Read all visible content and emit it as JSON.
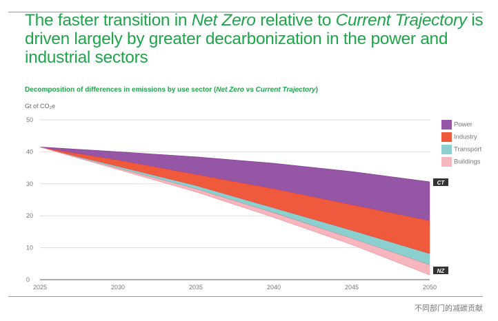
{
  "title": {
    "part1": "The faster transition in ",
    "em1": "Net Zero",
    "part2": " relative to ",
    "em2": "Current Trajectory",
    "part3": " is driven largely by greater decarbonization in the power and industrial sectors"
  },
  "subtitle": {
    "part1": "Decomposition of differences in emissions by use sector (",
    "em1": "Net Zero",
    "part2": " vs ",
    "em2": "Current Trajectory",
    "part3": ")"
  },
  "caption": "不同部门的减碳贡献",
  "chart_data": {
    "type": "area",
    "stacked": true,
    "ylabel": "Gt of CO₂e",
    "ylim": [
      0,
      50
    ],
    "yticks": [
      0,
      10,
      20,
      30,
      40,
      50
    ],
    "x": [
      2025,
      2030,
      2035,
      2040,
      2045,
      2050
    ],
    "grid": true,
    "legend_placement": "right",
    "baseline": {
      "name": "NZ",
      "values": [
        41.5,
        34.5,
        27.5,
        19.5,
        11,
        1.5
      ]
    },
    "series": [
      {
        "name": "Buildings",
        "color": "#f7b6bd",
        "values": [
          0,
          0.5,
          1,
          1.5,
          2,
          3.2
        ]
      },
      {
        "name": "Transport",
        "color": "#8ccfcf",
        "values": [
          0,
          0.5,
          1,
          1.5,
          2.5,
          3.5
        ]
      },
      {
        "name": "Industry",
        "color": "#ef5a3c",
        "values": [
          0,
          2,
          3.5,
          6,
          8,
          10.3
        ]
      },
      {
        "name": "Power",
        "color": "#9656a6",
        "values": [
          0,
          2.5,
          5.4,
          7.9,
          10.3,
          12.1
        ]
      }
    ],
    "end_labels": {
      "top": "CT",
      "bottom": "NZ"
    }
  }
}
